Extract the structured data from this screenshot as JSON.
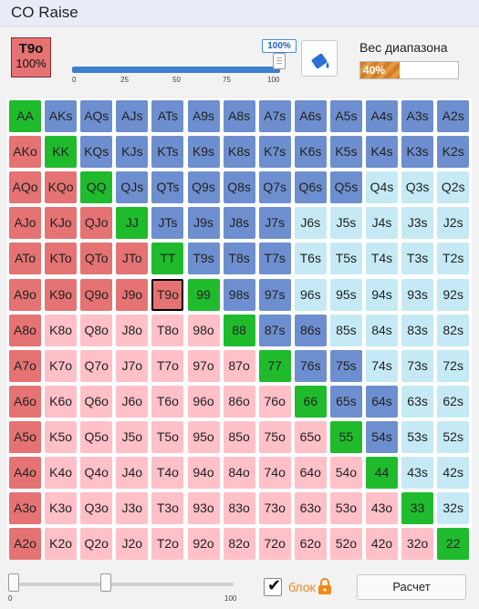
{
  "window": {
    "title": "CO Raise"
  },
  "selected_hand": {
    "hand": "T9o",
    "percent": "100%"
  },
  "slider": {
    "value_label": "100%",
    "ticks": [
      "0",
      "25",
      "50",
      "75",
      "100"
    ]
  },
  "range_weight": {
    "label": "Вес диапазона",
    "value": "40%"
  },
  "bottom": {
    "slider_min": "0",
    "slider_max": "100",
    "lock_label": "блок",
    "calc_button": "Расчет"
  },
  "colors": {
    "raise": "#6e8fcf",
    "pair": "#1fbb2d",
    "call": "#e57373",
    "light": "#c5eaf5",
    "pink": "#ffc0c8"
  },
  "matrix": [
    [
      "AA",
      "AKs",
      "AQs",
      "AJs",
      "ATs",
      "A9s",
      "A8s",
      "A7s",
      "A6s",
      "A5s",
      "A4s",
      "A3s",
      "A2s"
    ],
    [
      "AKo",
      "KK",
      "KQs",
      "KJs",
      "KTs",
      "K9s",
      "K8s",
      "K7s",
      "K6s",
      "K5s",
      "K4s",
      "K3s",
      "K2s"
    ],
    [
      "AQo",
      "KQo",
      "QQ",
      "QJs",
      "QTs",
      "Q9s",
      "Q8s",
      "Q7s",
      "Q6s",
      "Q5s",
      "Q4s",
      "Q3s",
      "Q2s"
    ],
    [
      "AJo",
      "KJo",
      "QJo",
      "JJ",
      "JTs",
      "J9s",
      "J8s",
      "J7s",
      "J6s",
      "J5s",
      "J4s",
      "J3s",
      "J2s"
    ],
    [
      "ATo",
      "KTo",
      "QTo",
      "JTo",
      "TT",
      "T9s",
      "T8s",
      "T7s",
      "T6s",
      "T5s",
      "T4s",
      "T3s",
      "T2s"
    ],
    [
      "A9o",
      "K9o",
      "Q9o",
      "J9o",
      "T9o",
      "99",
      "98s",
      "97s",
      "96s",
      "95s",
      "94s",
      "93s",
      "92s"
    ],
    [
      "A8o",
      "K8o",
      "Q8o",
      "J8o",
      "T8o",
      "98o",
      "88",
      "87s",
      "86s",
      "85s",
      "84s",
      "83s",
      "82s"
    ],
    [
      "A7o",
      "K7o",
      "Q7o",
      "J7o",
      "T7o",
      "97o",
      "87o",
      "77",
      "76s",
      "75s",
      "74s",
      "73s",
      "72s"
    ],
    [
      "A6o",
      "K6o",
      "Q6o",
      "J6o",
      "T6o",
      "96o",
      "86o",
      "76o",
      "66",
      "65s",
      "64s",
      "63s",
      "62s"
    ],
    [
      "A5o",
      "K5o",
      "Q5o",
      "J5o",
      "T5o",
      "95o",
      "85o",
      "75o",
      "65o",
      "55",
      "54s",
      "53s",
      "52s"
    ],
    [
      "A4o",
      "K4o",
      "Q4o",
      "J4o",
      "T4o",
      "94o",
      "84o",
      "74o",
      "64o",
      "54o",
      "44",
      "43s",
      "42s"
    ],
    [
      "A3o",
      "K3o",
      "Q3o",
      "J3o",
      "T3o",
      "93o",
      "83o",
      "73o",
      "63o",
      "53o",
      "43o",
      "33",
      "32s"
    ],
    [
      "A2o",
      "K2o",
      "Q2o",
      "J2o",
      "T2o",
      "92o",
      "82o",
      "72o",
      "62o",
      "52o",
      "42o",
      "32o",
      "22"
    ]
  ],
  "matrix_state": [
    [
      "pair",
      "raise",
      "raise",
      "raise",
      "raise",
      "raise",
      "raise",
      "raise",
      "raise",
      "raise",
      "raise",
      "raise",
      "raise"
    ],
    [
      "call",
      "pair",
      "raise",
      "raise",
      "raise",
      "raise",
      "raise",
      "raise",
      "raise",
      "raise",
      "raise",
      "raise",
      "raise"
    ],
    [
      "call",
      "call",
      "pair",
      "raise",
      "raise",
      "raise",
      "raise",
      "raise",
      "raise",
      "raise",
      "light",
      "light",
      "light"
    ],
    [
      "call",
      "call",
      "call",
      "pair",
      "raise",
      "raise",
      "raise",
      "raise",
      "light",
      "light",
      "light",
      "light",
      "light"
    ],
    [
      "call",
      "call",
      "call",
      "call",
      "pair",
      "raise",
      "raise",
      "raise",
      "light",
      "light",
      "light",
      "light",
      "light"
    ],
    [
      "call",
      "call",
      "call",
      "call",
      "sel",
      "pair",
      "raise",
      "raise",
      "light",
      "light",
      "light",
      "light",
      "light"
    ],
    [
      "call",
      "pink",
      "pink",
      "pink",
      "pink",
      "pink",
      "pair",
      "raise",
      "raise",
      "light",
      "light",
      "light",
      "light"
    ],
    [
      "call",
      "pink",
      "pink",
      "pink",
      "pink",
      "pink",
      "pink",
      "pair",
      "raise",
      "raise",
      "light",
      "light",
      "light"
    ],
    [
      "call",
      "pink",
      "pink",
      "pink",
      "pink",
      "pink",
      "pink",
      "pink",
      "pair",
      "raise",
      "raise",
      "light",
      "light"
    ],
    [
      "call",
      "pink",
      "pink",
      "pink",
      "pink",
      "pink",
      "pink",
      "pink",
      "pink",
      "pair",
      "raise",
      "light",
      "light"
    ],
    [
      "call",
      "pink",
      "pink",
      "pink",
      "pink",
      "pink",
      "pink",
      "pink",
      "pink",
      "pink",
      "pair",
      "light",
      "light"
    ],
    [
      "call",
      "pink",
      "pink",
      "pink",
      "pink",
      "pink",
      "pink",
      "pink",
      "pink",
      "pink",
      "pink",
      "pair",
      "light"
    ],
    [
      "call",
      "pink",
      "pink",
      "pink",
      "pink",
      "pink",
      "pink",
      "pink",
      "pink",
      "pink",
      "pink",
      "pink",
      "pair"
    ]
  ]
}
